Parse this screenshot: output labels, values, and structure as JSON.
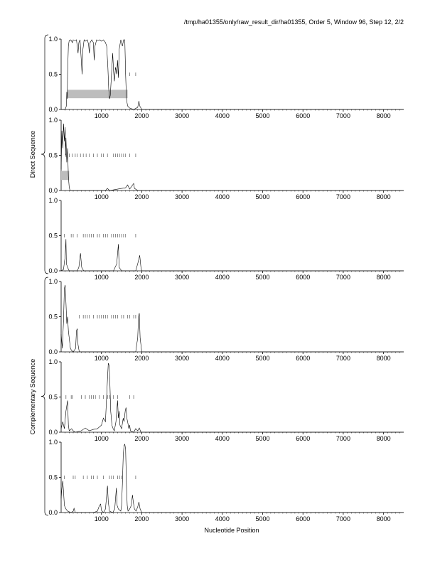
{
  "header": {
    "title": "/tmp/ha01355/only/raw_result_dir/ha01355, Order 5, Window 96, Step 12, 2/2"
  },
  "chart_data": {
    "type": "line",
    "xlabel": "Nucleotide Position",
    "xlim": [
      0,
      8500
    ],
    "ylim": [
      0,
      1
    ],
    "x_ticks": [
      1000,
      2000,
      3000,
      4000,
      5000,
      6000,
      7000,
      8000
    ],
    "x_tick_labels": [
      "1000",
      "2000",
      "3000",
      "4000",
      "5000",
      "6000",
      "7000",
      "8000"
    ],
    "y_ticks": [
      0,
      0.5,
      1
    ],
    "y_tick_labels": [
      "0.0",
      "0.5",
      "1.0"
    ],
    "groups": [
      {
        "label": "Direct Sequence",
        "panels": [
          0,
          1,
          2
        ]
      },
      {
        "label": "Complementary Sequence",
        "panels": [
          3,
          4,
          5
        ]
      }
    ],
    "panels": [
      {
        "frame": 1,
        "series": [
          [
            0,
            0
          ],
          [
            100,
            0
          ],
          [
            130,
            0.05
          ],
          [
            140,
            0.25
          ],
          [
            150,
            0.15
          ],
          [
            160,
            0.5
          ],
          [
            180,
            0.9
          ],
          [
            200,
            0.98
          ],
          [
            240,
            0.99
          ],
          [
            280,
            0.95
          ],
          [
            300,
            0.99
          ],
          [
            340,
            0.98
          ],
          [
            380,
            0.99
          ],
          [
            400,
            0.9
          ],
          [
            420,
            0.8
          ],
          [
            440,
            0.95
          ],
          [
            470,
            0.99
          ],
          [
            500,
            0.7
          ],
          [
            520,
            0.5
          ],
          [
            540,
            0.85
          ],
          [
            570,
            0.99
          ],
          [
            600,
            0.97
          ],
          [
            650,
            0.99
          ],
          [
            680,
            0.93
          ],
          [
            700,
            0.8
          ],
          [
            720,
            0.95
          ],
          [
            760,
            0.99
          ],
          [
            800,
            0.95
          ],
          [
            820,
            0.7
          ],
          [
            840,
            0.9
          ],
          [
            880,
            0.99
          ],
          [
            920,
            0.98
          ],
          [
            960,
            0.99
          ],
          [
            1000,
            0.97
          ],
          [
            1050,
            0.99
          ],
          [
            1100,
            0.95
          ],
          [
            1130,
            0.9
          ],
          [
            1160,
            0.6
          ],
          [
            1180,
            0.3
          ],
          [
            1200,
            0.15
          ],
          [
            1220,
            0.2
          ],
          [
            1250,
            0.5
          ],
          [
            1280,
            0.8
          ],
          [
            1300,
            0.55
          ],
          [
            1320,
            0.4
          ],
          [
            1350,
            0.6
          ],
          [
            1380,
            0.5
          ],
          [
            1400,
            0.7
          ],
          [
            1420,
            0.45
          ],
          [
            1440,
            0.85
          ],
          [
            1480,
            0.99
          ],
          [
            1520,
            0.9
          ],
          [
            1550,
            0.99
          ],
          [
            1580,
            0.99
          ],
          [
            1600,
            0.5
          ],
          [
            1620,
            0.15
          ],
          [
            1650,
            0.05
          ],
          [
            1700,
            0.02
          ],
          [
            1800,
            0
          ],
          [
            1900,
            0.03
          ],
          [
            1930,
            0.12
          ],
          [
            1950,
            0.05
          ],
          [
            2000,
            0
          ],
          [
            8500,
            0
          ]
        ],
        "marker_level": 0.5,
        "marker_x": [
          1700,
          1850
        ],
        "bar": {
          "x0": 150,
          "x1": 1650,
          "y0": 0.16,
          "y1": 0.28
        }
      },
      {
        "frame": 2,
        "series": [
          [
            0,
            0.3
          ],
          [
            20,
            0.85
          ],
          [
            40,
            0.6
          ],
          [
            60,
            0.95
          ],
          [
            80,
            0.7
          ],
          [
            100,
            0.9
          ],
          [
            110,
            0.5
          ],
          [
            120,
            0.75
          ],
          [
            140,
            0.4
          ],
          [
            160,
            0.6
          ],
          [
            180,
            0.2
          ],
          [
            200,
            0.05
          ],
          [
            220,
            0
          ],
          [
            1100,
            0
          ],
          [
            1150,
            0.03
          ],
          [
            1200,
            0
          ],
          [
            1600,
            0.04
          ],
          [
            1650,
            0.08
          ],
          [
            1700,
            0.02
          ],
          [
            1800,
            0.1
          ],
          [
            1820,
            0.03
          ],
          [
            1900,
            0
          ],
          [
            8500,
            0
          ]
        ],
        "marker_level": 0.5,
        "marker_x": [
          120,
          200,
          280,
          350,
          400,
          480,
          550,
          620,
          700,
          800,
          900,
          1000,
          1050,
          1150,
          1300,
          1350,
          1400,
          1450,
          1500,
          1550,
          1600,
          1700,
          1850
        ],
        "bar": {
          "x0": 0,
          "x1": 200,
          "y0": 0.15,
          "y1": 0.28
        }
      },
      {
        "frame": 3,
        "series": [
          [
            0,
            0
          ],
          [
            60,
            0.02
          ],
          [
            80,
            0.12
          ],
          [
            100,
            0.2
          ],
          [
            120,
            0.45
          ],
          [
            130,
            0.1
          ],
          [
            160,
            0.05
          ],
          [
            200,
            0
          ],
          [
            400,
            0
          ],
          [
            440,
            0.05
          ],
          [
            480,
            0.25
          ],
          [
            510,
            0.05
          ],
          [
            560,
            0
          ],
          [
            1300,
            0
          ],
          [
            1380,
            0.1
          ],
          [
            1420,
            0.38
          ],
          [
            1440,
            0.05
          ],
          [
            1500,
            0
          ],
          [
            1850,
            0
          ],
          [
            1900,
            0.1
          ],
          [
            1950,
            0.22
          ],
          [
            1980,
            0.05
          ],
          [
            2000,
            0
          ],
          [
            8500,
            0
          ]
        ],
        "marker_level": 0.5,
        "marker_x": [
          80,
          250,
          300,
          400,
          550,
          600,
          650,
          700,
          750,
          800,
          900,
          950,
          1050,
          1100,
          1150,
          1250,
          1300,
          1350,
          1400,
          1450,
          1500,
          1550,
          1600,
          1850
        ],
        "bar": null
      },
      {
        "frame": 4,
        "series": [
          [
            0,
            0.25
          ],
          [
            30,
            0.05
          ],
          [
            60,
            0.45
          ],
          [
            80,
            0.9
          ],
          [
            100,
            0.95
          ],
          [
            120,
            0.7
          ],
          [
            140,
            0.4
          ],
          [
            160,
            0.5
          ],
          [
            180,
            0.3
          ],
          [
            200,
            0.2
          ],
          [
            230,
            0.05
          ],
          [
            260,
            0.02
          ],
          [
            300,
            0
          ],
          [
            360,
            0.05
          ],
          [
            380,
            0.3
          ],
          [
            400,
            0.33
          ],
          [
            420,
            0.1
          ],
          [
            450,
            0
          ],
          [
            1850,
            0
          ],
          [
            1900,
            0.2
          ],
          [
            1920,
            0.5
          ],
          [
            1940,
            0.55
          ],
          [
            1960,
            0.2
          ],
          [
            2000,
            0
          ],
          [
            8500,
            0
          ]
        ],
        "marker_level": 0.5,
        "marker_x": [
          450,
          550,
          600,
          650,
          700,
          800,
          900,
          950,
          1000,
          1050,
          1100,
          1150,
          1250,
          1300,
          1350,
          1400,
          1500,
          1550,
          1650,
          1700,
          1800,
          1850
        ],
        "bar": null
      },
      {
        "frame": 5,
        "series": [
          [
            0,
            0.05
          ],
          [
            40,
            0.15
          ],
          [
            80,
            0.05
          ],
          [
            120,
            0.3
          ],
          [
            160,
            0.45
          ],
          [
            180,
            0.1
          ],
          [
            200,
            0.02
          ],
          [
            260,
            0.05
          ],
          [
            300,
            0.02
          ],
          [
            350,
            0
          ],
          [
            500,
            0.02
          ],
          [
            600,
            0.06
          ],
          [
            700,
            0.02
          ],
          [
            800,
            0.04
          ],
          [
            900,
            0.05
          ],
          [
            1000,
            0.1
          ],
          [
            1050,
            0.2
          ],
          [
            1100,
            0.15
          ],
          [
            1120,
            0.4
          ],
          [
            1150,
            0.75
          ],
          [
            1170,
            0.98
          ],
          [
            1190,
            0.95
          ],
          [
            1210,
            0.7
          ],
          [
            1230,
            0.3
          ],
          [
            1260,
            0.1
          ],
          [
            1290,
            0.05
          ],
          [
            1320,
            0.02
          ],
          [
            1360,
            0.15
          ],
          [
            1400,
            0.45
          ],
          [
            1420,
            0.2
          ],
          [
            1440,
            0.3
          ],
          [
            1460,
            0.1
          ],
          [
            1500,
            0.05
          ],
          [
            1540,
            0.2
          ],
          [
            1560,
            0.15
          ],
          [
            1590,
            0.3
          ],
          [
            1610,
            0.35
          ],
          [
            1630,
            0.2
          ],
          [
            1650,
            0.15
          ],
          [
            1680,
            0.05
          ],
          [
            1700,
            0.1
          ],
          [
            1720,
            0.02
          ],
          [
            1800,
            0
          ],
          [
            1850,
            0.05
          ],
          [
            1900,
            0.02
          ],
          [
            1940,
            0.06
          ],
          [
            1980,
            0
          ],
          [
            8500,
            0
          ]
        ],
        "marker_level": 0.5,
        "marker_x": [
          120,
          250,
          280,
          500,
          600,
          700,
          750,
          800,
          850,
          950,
          1050,
          1150,
          1200,
          1300,
          1400,
          1700,
          1800
        ],
        "bar": null
      },
      {
        "frame": 6,
        "series": [
          [
            0,
            0.2
          ],
          [
            20,
            0.35
          ],
          [
            40,
            0.45
          ],
          [
            60,
            0.3
          ],
          [
            80,
            0.1
          ],
          [
            120,
            0.05
          ],
          [
            160,
            0.02
          ],
          [
            250,
            0
          ],
          [
            300,
            0.02
          ],
          [
            320,
            0.06
          ],
          [
            350,
            0
          ],
          [
            800,
            0
          ],
          [
            900,
            0.02
          ],
          [
            950,
            0.1
          ],
          [
            980,
            0.12
          ],
          [
            1000,
            0.03
          ],
          [
            1050,
            0
          ],
          [
            1100,
            0.05
          ],
          [
            1130,
            0.25
          ],
          [
            1150,
            0.38
          ],
          [
            1170,
            0.15
          ],
          [
            1200,
            0.02
          ],
          [
            1280,
            0
          ],
          [
            1330,
            0.05
          ],
          [
            1370,
            0.35
          ],
          [
            1390,
            0.1
          ],
          [
            1420,
            0.05
          ],
          [
            1480,
            0.02
          ],
          [
            1500,
            0.1
          ],
          [
            1520,
            0.4
          ],
          [
            1540,
            0.8
          ],
          [
            1560,
            0.95
          ],
          [
            1580,
            0.97
          ],
          [
            1600,
            0.9
          ],
          [
            1620,
            0.4
          ],
          [
            1640,
            0.1
          ],
          [
            1660,
            0.02
          ],
          [
            1700,
            0.05
          ],
          [
            1740,
            0.1
          ],
          [
            1770,
            0.25
          ],
          [
            1790,
            0.15
          ],
          [
            1820,
            0.05
          ],
          [
            1860,
            0.02
          ],
          [
            1900,
            0.08
          ],
          [
            1930,
            0.15
          ],
          [
            1960,
            0.05
          ],
          [
            2000,
            0
          ],
          [
            8500,
            0
          ]
        ],
        "marker_level": 0.5,
        "marker_x": [
          80,
          300,
          350,
          550,
          650,
          750,
          800,
          900,
          1050,
          1200,
          1250,
          1300,
          1400,
          1450,
          1500,
          1850
        ],
        "bar": null
      }
    ]
  }
}
